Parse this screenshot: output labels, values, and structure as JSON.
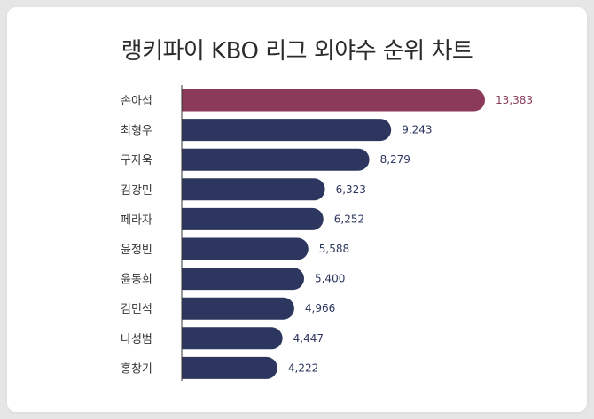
{
  "title": "랭키파이 KBO 리그 외야수 순위 차트",
  "colors": {
    "highlight": "#8b3a5a",
    "bar": "#2c365e",
    "highlight_label": "#8b3a5a",
    "label": "#2c365e",
    "axis": "#333333"
  },
  "chart_data": {
    "type": "bar",
    "orientation": "horizontal",
    "title": "랭키파이 KBO 리그 외야수 순위 차트",
    "categories": [
      "손아섭",
      "최형우",
      "구자욱",
      "김강민",
      "페라자",
      "윤정빈",
      "윤동희",
      "김민석",
      "나성범",
      "홍창기"
    ],
    "values": [
      13383,
      9243,
      8279,
      6323,
      6252,
      5588,
      5400,
      4966,
      4447,
      4222
    ],
    "value_labels": [
      "13,383",
      "9,243",
      "8,279",
      "6,323",
      "6,252",
      "5,588",
      "5,400",
      "4,966",
      "4,447",
      "4,222"
    ],
    "highlight_index": 0,
    "xlim": [
      0,
      13383
    ],
    "grid": false,
    "legend": "none"
  }
}
